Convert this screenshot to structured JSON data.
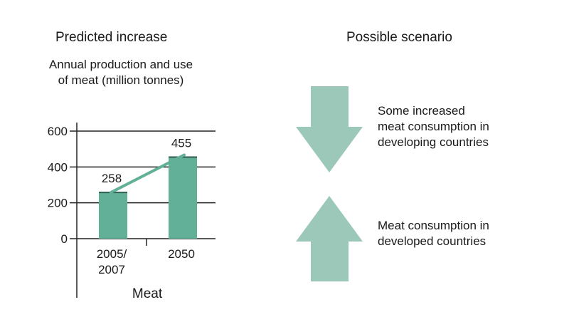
{
  "left_panel": {
    "heading": "Predicted increase",
    "subtitle": "Annual production and use\nof meat (million tonnes)"
  },
  "right_panel": {
    "heading": "Possible scenario",
    "arrow_down": {
      "icon": "down-arrow-icon",
      "color": "#9cc8b9",
      "text": "Some increased\nmeat consumption in\ndeveloping countries"
    },
    "arrow_up": {
      "icon": "up-arrow-icon",
      "color": "#9cc8b9",
      "text": "Meat consumption in\ndeveloped countries"
    }
  },
  "chart_data": {
    "type": "bar",
    "title": "Annual production and use of meat (million tonnes)",
    "categories": [
      "2005/\n2007",
      "2050"
    ],
    "values": [
      258,
      455
    ],
    "data_labels": [
      "258",
      "455"
    ],
    "xlabel": "Meat",
    "ylabel": "",
    "ylim": [
      0,
      600
    ],
    "yticks": [
      0,
      200,
      400,
      600
    ],
    "grid": true,
    "bar_color": "#62b098",
    "trend_line": true,
    "trend_color": "#62b098"
  }
}
